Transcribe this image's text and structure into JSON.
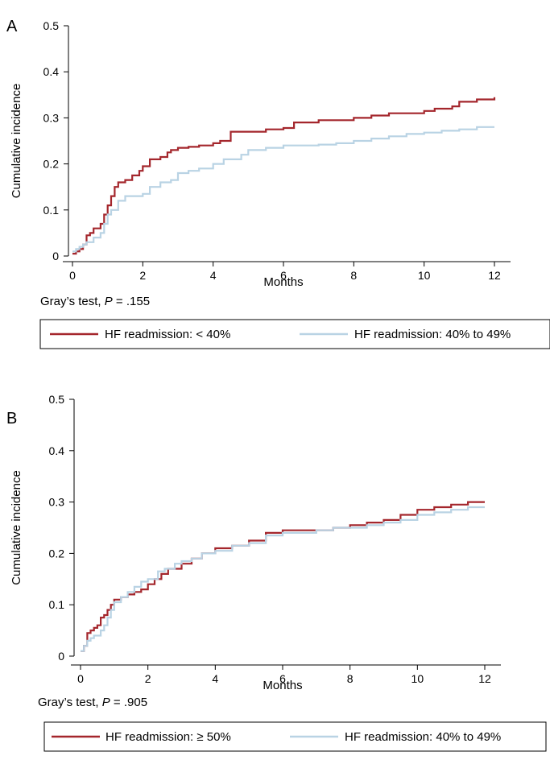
{
  "chart_data": [
    {
      "type": "line",
      "panel": "A",
      "xlabel": "Months",
      "ylabel": "Cumulative incidence",
      "xlim": [
        0,
        12
      ],
      "ylim": [
        0,
        0.5
      ],
      "x_ticks": [
        0,
        2,
        4,
        6,
        8,
        10,
        12
      ],
      "y_ticks": [
        0,
        0.1,
        0.2,
        0.3,
        0.4,
        0.5
      ],
      "x_tick_labels": [
        "0",
        "2",
        "4",
        "6",
        "8",
        "10",
        "12"
      ],
      "y_tick_labels": [
        "0",
        "0.1",
        "0.2",
        "0.3",
        "0.4",
        "0.5"
      ],
      "grid": false,
      "legend_position": "bottom",
      "note_prefix": "Gray’s test, ",
      "note_p": "P",
      "note_suffix": " = .155",
      "series": [
        {
          "name": "HF readmission: < 40%",
          "color": "#a4262c",
          "x": [
            0,
            0.1,
            0.2,
            0.3,
            0.4,
            0.5,
            0.6,
            0.8,
            0.9,
            1.0,
            1.1,
            1.2,
            1.3,
            1.4,
            1.5,
            1.7,
            1.9,
            2.0,
            2.2,
            2.5,
            2.7,
            2.8,
            3.0,
            3.3,
            3.6,
            4.0,
            4.2,
            4.5,
            5.5,
            6.0,
            6.3,
            7.0,
            8.0,
            8.5,
            9.0,
            10.0,
            10.3,
            10.8,
            11.0,
            11.5,
            12.0
          ],
          "y": [
            0.005,
            0.01,
            0.015,
            0.025,
            0.045,
            0.05,
            0.06,
            0.07,
            0.09,
            0.11,
            0.13,
            0.15,
            0.16,
            0.16,
            0.165,
            0.175,
            0.185,
            0.195,
            0.21,
            0.215,
            0.225,
            0.23,
            0.235,
            0.237,
            0.24,
            0.245,
            0.25,
            0.27,
            0.275,
            0.278,
            0.29,
            0.295,
            0.3,
            0.305,
            0.31,
            0.315,
            0.32,
            0.325,
            0.335,
            0.34,
            0.345
          ]
        },
        {
          "name": "HF readmission: 40% to 49%",
          "color": "#b9d3e4",
          "x": [
            0,
            0.1,
            0.2,
            0.3,
            0.4,
            0.6,
            0.8,
            0.9,
            1.0,
            1.1,
            1.3,
            1.5,
            1.7,
            2.0,
            2.2,
            2.5,
            2.8,
            3.0,
            3.3,
            3.6,
            4.0,
            4.3,
            4.8,
            5.0,
            5.5,
            6.0,
            7.0,
            7.5,
            8.0,
            8.5,
            9.0,
            9.5,
            10.0,
            10.5,
            11.0,
            11.5,
            12.0
          ],
          "y": [
            0.01,
            0.015,
            0.02,
            0.025,
            0.03,
            0.04,
            0.05,
            0.07,
            0.09,
            0.1,
            0.12,
            0.13,
            0.13,
            0.135,
            0.15,
            0.16,
            0.165,
            0.18,
            0.185,
            0.19,
            0.2,
            0.21,
            0.22,
            0.23,
            0.235,
            0.24,
            0.242,
            0.245,
            0.25,
            0.255,
            0.26,
            0.265,
            0.268,
            0.272,
            0.275,
            0.28,
            0.28
          ]
        }
      ]
    },
    {
      "type": "line",
      "panel": "B",
      "xlabel": "Months",
      "ylabel": "Cumulative incidence",
      "xlim": [
        0,
        12
      ],
      "ylim": [
        0,
        0.5
      ],
      "x_ticks": [
        0,
        2,
        4,
        6,
        8,
        10,
        12
      ],
      "y_ticks": [
        0,
        0.1,
        0.2,
        0.3,
        0.4,
        0.5
      ],
      "x_tick_labels": [
        "0",
        "2",
        "4",
        "6",
        "8",
        "10",
        "12"
      ],
      "y_tick_labels": [
        "0",
        "0.1",
        "0.2",
        "0.3",
        "0.4",
        "0.5"
      ],
      "grid": false,
      "legend_position": "bottom",
      "note_prefix": "Gray’s test, ",
      "note_p": "P",
      "note_suffix": " = .905",
      "series": [
        {
          "name": "HF readmission: ≥ 50%",
          "color": "#a4262c",
          "x": [
            0,
            0.1,
            0.2,
            0.3,
            0.4,
            0.5,
            0.6,
            0.7,
            0.8,
            0.9,
            1.0,
            1.2,
            1.4,
            1.6,
            1.8,
            2.0,
            2.2,
            2.4,
            2.6,
            3.0,
            3.3,
            3.6,
            4.0,
            4.5,
            5.0,
            5.5,
            6.0,
            7.0,
            7.5,
            8.0,
            8.5,
            9.0,
            9.5,
            10.0,
            10.5,
            11.0,
            11.5,
            12.0
          ],
          "y": [
            0.01,
            0.02,
            0.045,
            0.05,
            0.055,
            0.06,
            0.075,
            0.08,
            0.09,
            0.1,
            0.11,
            0.115,
            0.12,
            0.125,
            0.13,
            0.14,
            0.15,
            0.16,
            0.17,
            0.18,
            0.19,
            0.2,
            0.21,
            0.215,
            0.225,
            0.24,
            0.245,
            0.245,
            0.25,
            0.255,
            0.26,
            0.265,
            0.275,
            0.285,
            0.29,
            0.295,
            0.3,
            0.3
          ]
        },
        {
          "name": "HF readmission: 40% to 49%",
          "color": "#b9d3e4",
          "x": [
            0,
            0.1,
            0.2,
            0.3,
            0.4,
            0.6,
            0.7,
            0.8,
            0.9,
            1.0,
            1.2,
            1.4,
            1.6,
            1.8,
            2.0,
            2.3,
            2.5,
            2.8,
            3.0,
            3.3,
            3.6,
            4.0,
            4.5,
            5.0,
            5.5,
            6.0,
            6.5,
            7.0,
            7.5,
            8.0,
            8.5,
            9.0,
            9.5,
            10.0,
            10.5,
            11.0,
            11.5,
            12.0
          ],
          "y": [
            0.01,
            0.02,
            0.03,
            0.035,
            0.04,
            0.05,
            0.06,
            0.075,
            0.09,
            0.105,
            0.115,
            0.125,
            0.135,
            0.145,
            0.15,
            0.165,
            0.17,
            0.18,
            0.185,
            0.19,
            0.2,
            0.205,
            0.215,
            0.22,
            0.235,
            0.24,
            0.24,
            0.245,
            0.25,
            0.25,
            0.255,
            0.26,
            0.265,
            0.275,
            0.28,
            0.285,
            0.29,
            0.29
          ]
        }
      ]
    }
  ]
}
